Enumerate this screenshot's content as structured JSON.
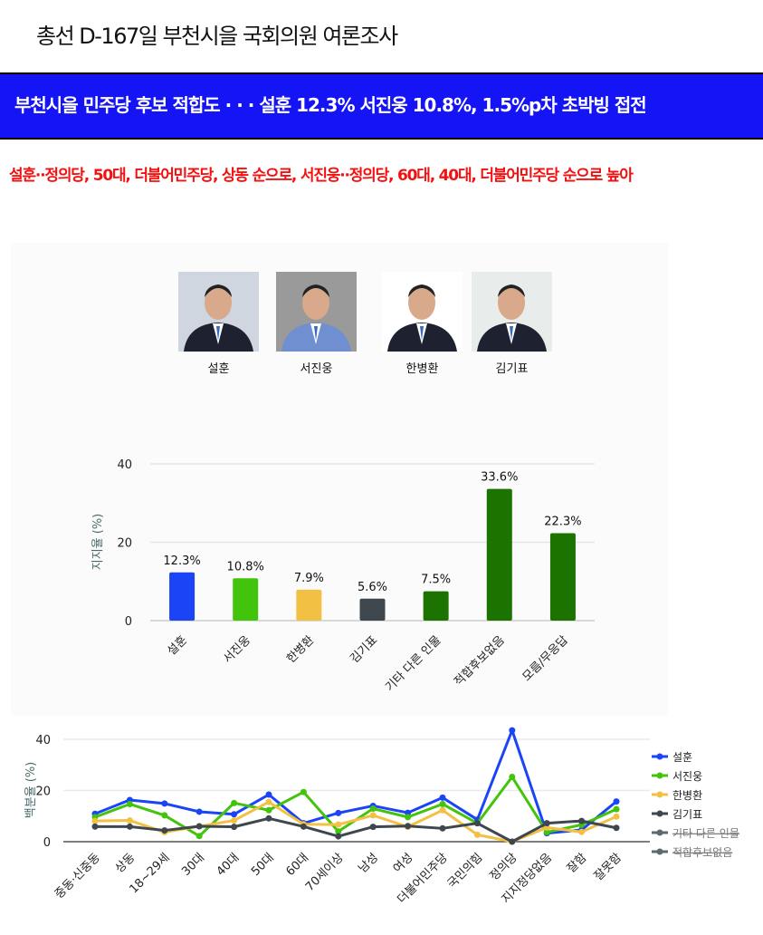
{
  "header": {
    "title": "총선 D-167일 부천시을 국회의원 여론조사",
    "banner": "부천시을 민주당 후보 적합도 · · · 설훈 12.3% 서진웅 10.8%, 1.5%p차 초박빙 접전",
    "subhead": "설훈··정의당, 50대, 더불어민주당, 상동 순으로, 서진웅··정의당, 60대, 40대, 더불어민주당 순으로 높아"
  },
  "candidates": [
    {
      "name": "설훈",
      "bg": "#cfd6e0"
    },
    {
      "name": "서진웅",
      "bg": "#9a9a9a"
    },
    {
      "name": "한병환",
      "bg": "#ffffff"
    },
    {
      "name": "김기표",
      "bg": "#e8ecea"
    }
  ],
  "chart_data": [
    {
      "type": "bar",
      "ylabel": "지지율 (%)",
      "ylim": [
        0,
        40
      ],
      "yticks": [
        0,
        20,
        40
      ],
      "grid": true,
      "categories": [
        "설훈",
        "서진웅",
        "한병환",
        "김기표",
        "기타 다른 인물",
        "적합후보없음",
        "모름/무응답"
      ],
      "values": [
        12.3,
        10.8,
        7.9,
        5.6,
        7.5,
        33.6,
        22.3
      ],
      "labels": [
        "12.3%",
        "10.8%",
        "7.9%",
        "5.6%",
        "7.5%",
        "33.6%",
        "22.3%"
      ],
      "colors": [
        "#1a44f5",
        "#43c40c",
        "#f2c144",
        "#3d474d",
        "#1c7300",
        "#1c7300",
        "#1c7300"
      ]
    },
    {
      "type": "line",
      "ylabel": "백분율 (%)",
      "ylim": [
        0,
        40
      ],
      "yticks": [
        0,
        20,
        40
      ],
      "grid": true,
      "legend": "right",
      "categories": [
        "중동·신중동",
        "상동",
        "18~29세",
        "30대",
        "40대",
        "50대",
        "60대",
        "70세이상",
        "남성",
        "여성",
        "더불어민주당",
        "국민의힘",
        "정의당",
        "지지정당없음",
        "잘함",
        "잘못함"
      ],
      "series": [
        {
          "name": "설훈",
          "color": "#1a44f5",
          "values": [
            10.9,
            16.3,
            14.9,
            11.7,
            10.7,
            18.4,
            7.2,
            11.2,
            14.0,
            11.3,
            17.2,
            8.6,
            43.5,
            3.3,
            4.6,
            15.7
          ]
        },
        {
          "name": "서진웅",
          "color": "#43c40c",
          "values": [
            9.6,
            14.7,
            10.3,
            2.2,
            15.1,
            12.3,
            19.4,
            4.0,
            12.9,
            9.6,
            14.7,
            7.2,
            25.3,
            3.7,
            6.6,
            12.7
          ]
        },
        {
          "name": "한병환",
          "color": "#f2c144",
          "values": [
            8.1,
            8.3,
            3.7,
            6.0,
            8.3,
            15.5,
            6.8,
            6.7,
            10.3,
            5.8,
            12.3,
            2.7,
            0,
            5.5,
            3.8,
            9.8
          ]
        },
        {
          "name": "김기표",
          "color": "#3d474d",
          "values": [
            5.9,
            5.9,
            4.4,
            6.0,
            5.8,
            9.1,
            5.9,
            2.1,
            5.8,
            6.1,
            5.2,
            7.2,
            0,
            7.2,
            8.1,
            5.4
          ]
        },
        {
          "name": "기타 다른 인물",
          "color": "#5a6a70",
          "hidden": true
        },
        {
          "name": "적합후보없음",
          "color": "#5a6a70",
          "hidden": true
        }
      ]
    }
  ]
}
